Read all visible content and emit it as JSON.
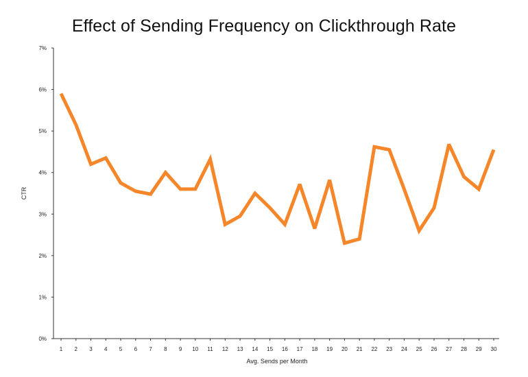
{
  "chart_data": {
    "type": "line",
    "title": "Effect of Sending Frequency on Clickthrough Rate",
    "xlabel": "Avg. Sends per Month",
    "ylabel": "CTR",
    "x": [
      1,
      2,
      3,
      4,
      5,
      6,
      7,
      8,
      9,
      10,
      11,
      12,
      13,
      14,
      15,
      16,
      17,
      18,
      19,
      20,
      21,
      22,
      23,
      24,
      25,
      26,
      27,
      28,
      29,
      30
    ],
    "series": [
      {
        "values": [
          5.9,
          5.15,
          4.2,
          4.35,
          3.75,
          3.55,
          3.48,
          4.0,
          3.6,
          3.6,
          4.32,
          2.75,
          2.95,
          3.5,
          3.15,
          2.75,
          3.72,
          2.65,
          3.82,
          2.3,
          2.4,
          4.62,
          4.55,
          3.6,
          2.6,
          3.15,
          4.68,
          3.9,
          3.6,
          4.55
        ]
      }
    ],
    "ylim": [
      0,
      7
    ],
    "yticks": [
      "0%",
      "1%",
      "2%",
      "3%",
      "4%",
      "5%",
      "6%",
      "7%"
    ],
    "xticks": [
      "1",
      "2",
      "3",
      "4",
      "5",
      "6",
      "7",
      "8",
      "9",
      "10",
      "11",
      "12",
      "13",
      "14",
      "15",
      "16",
      "17",
      "18",
      "19",
      "20",
      "21",
      "22",
      "23",
      "24",
      "25",
      "26",
      "27",
      "28",
      "29",
      "30"
    ],
    "grid": false,
    "line_color": "#F5862A"
  }
}
